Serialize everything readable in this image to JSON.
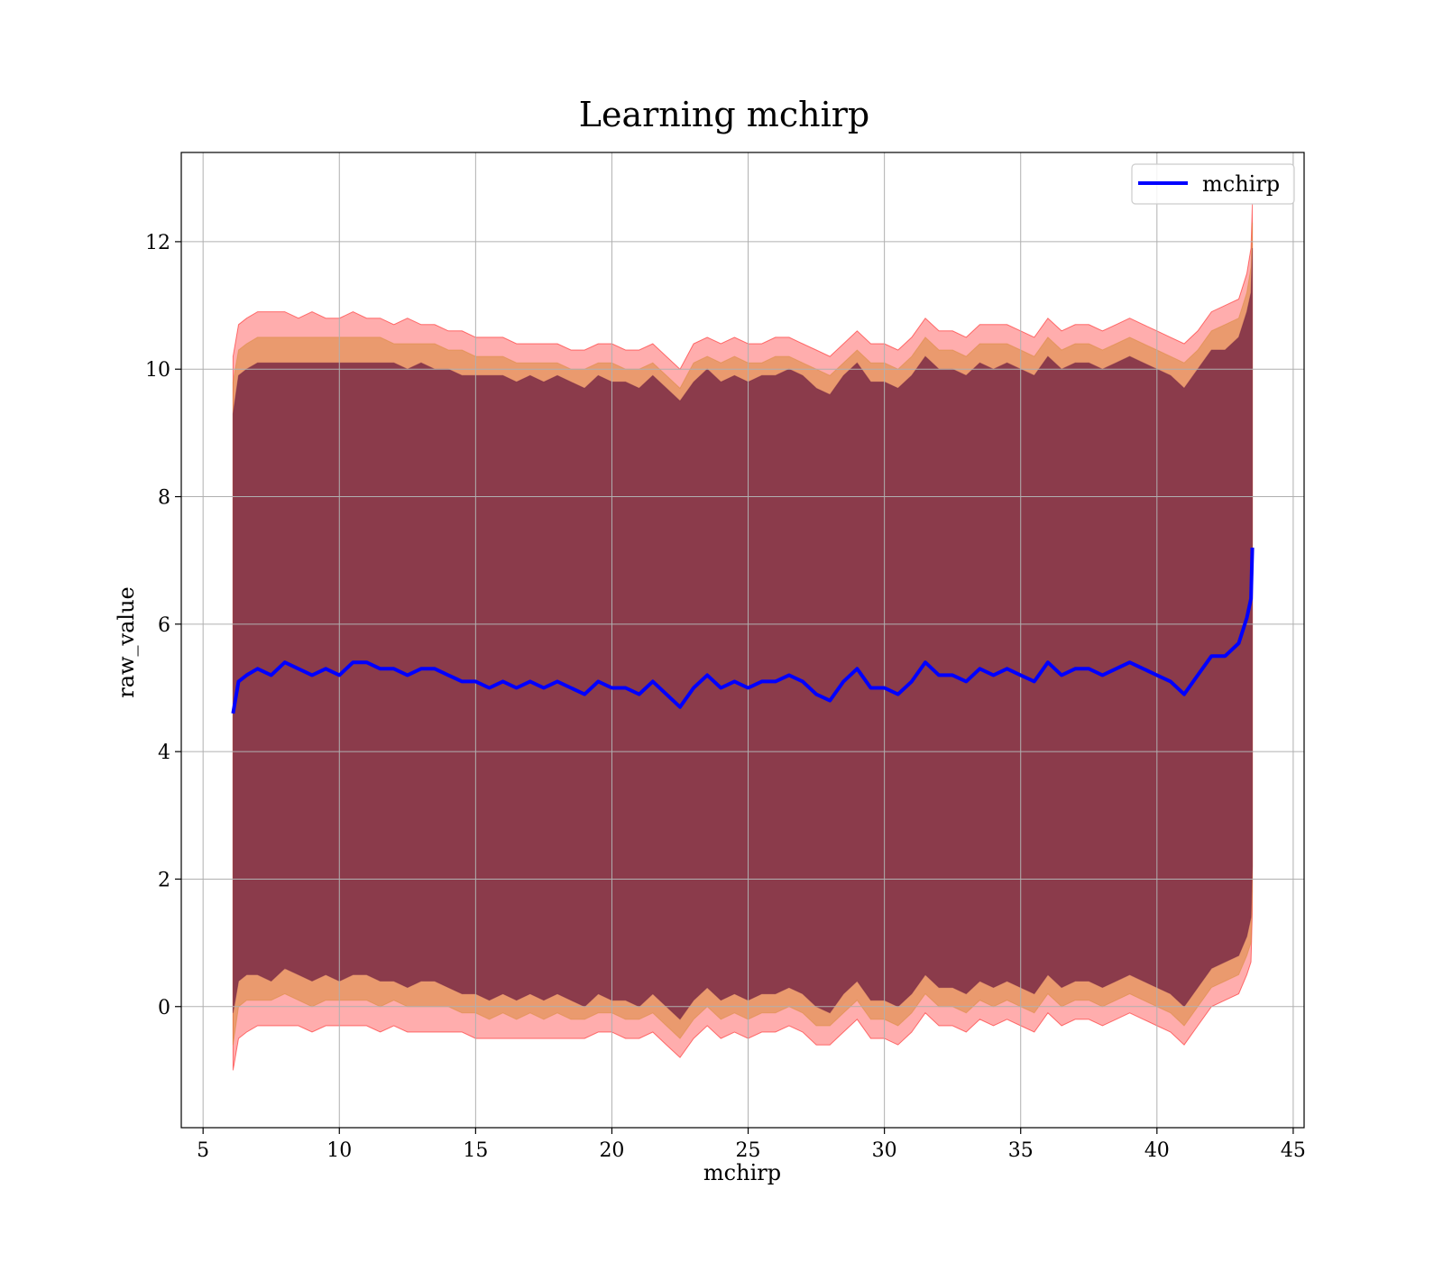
{
  "chart_data": {
    "type": "line",
    "title": "Learning mchirp",
    "xlabel": "mchirp",
    "ylabel": "raw_value",
    "xlim": [
      4.2,
      45.4
    ],
    "ylim": [
      -1.9,
      13.4
    ],
    "xticks": [
      5,
      10,
      15,
      20,
      25,
      30,
      35,
      40,
      45
    ],
    "yticks": [
      0,
      2,
      4,
      6,
      8,
      10,
      12
    ],
    "grid": true,
    "legend_position": "top-right",
    "colors": {
      "line": "#0000ff",
      "outer_band": "#ff0000",
      "middle_band": "#d98a3a",
      "inner_band": "#7a2a45"
    },
    "series": [
      {
        "name": "mchirp",
        "x": [
          6.1,
          6.3,
          6.6,
          7.0,
          7.5,
          8.0,
          8.5,
          9.0,
          9.5,
          10.0,
          10.5,
          11.0,
          11.5,
          12.0,
          12.5,
          13.0,
          13.5,
          14.0,
          14.5,
          15.0,
          15.5,
          16.0,
          16.5,
          17.0,
          17.5,
          18.0,
          18.5,
          19.0,
          19.5,
          20.0,
          20.5,
          21.0,
          21.5,
          22.0,
          22.5,
          23.0,
          23.5,
          24.0,
          24.5,
          25.0,
          25.5,
          26.0,
          26.5,
          27.0,
          27.5,
          28.0,
          28.5,
          29.0,
          29.5,
          30.0,
          30.5,
          31.0,
          31.5,
          32.0,
          32.5,
          33.0,
          33.5,
          34.0,
          34.5,
          35.0,
          35.5,
          36.0,
          36.5,
          37.0,
          37.5,
          38.0,
          38.5,
          39.0,
          39.5,
          40.0,
          40.5,
          41.0,
          41.5,
          42.0,
          42.5,
          43.0,
          43.3,
          43.45,
          43.5
        ],
        "y": [
          4.6,
          5.1,
          5.2,
          5.3,
          5.2,
          5.4,
          5.3,
          5.2,
          5.3,
          5.2,
          5.4,
          5.4,
          5.3,
          5.3,
          5.2,
          5.3,
          5.3,
          5.2,
          5.1,
          5.1,
          5.0,
          5.1,
          5.0,
          5.1,
          5.0,
          5.1,
          5.0,
          4.9,
          5.1,
          5.0,
          5.0,
          4.9,
          5.1,
          4.9,
          4.7,
          5.0,
          5.2,
          5.0,
          5.1,
          5.0,
          5.1,
          5.1,
          5.2,
          5.1,
          4.9,
          4.8,
          5.1,
          5.3,
          5.0,
          5.0,
          4.9,
          5.1,
          5.4,
          5.2,
          5.2,
          5.1,
          5.3,
          5.2,
          5.3,
          5.2,
          5.1,
          5.4,
          5.2,
          5.3,
          5.3,
          5.2,
          5.3,
          5.4,
          5.3,
          5.2,
          5.1,
          4.9,
          5.2,
          5.5,
          5.5,
          5.7,
          6.1,
          6.4,
          7.2
        ]
      }
    ],
    "bands": [
      {
        "upper": [
          10.2,
          10.7,
          10.8,
          10.9,
          10.9,
          10.9,
          10.8,
          10.9,
          10.8,
          10.8,
          10.9,
          10.8,
          10.8,
          10.7,
          10.8,
          10.7,
          10.7,
          10.6,
          10.6,
          10.5,
          10.5,
          10.5,
          10.4,
          10.4,
          10.4,
          10.4,
          10.3,
          10.3,
          10.4,
          10.4,
          10.3,
          10.3,
          10.4,
          10.2,
          10.0,
          10.4,
          10.5,
          10.4,
          10.5,
          10.4,
          10.4,
          10.5,
          10.5,
          10.4,
          10.3,
          10.2,
          10.4,
          10.6,
          10.4,
          10.4,
          10.3,
          10.5,
          10.8,
          10.6,
          10.6,
          10.5,
          10.7,
          10.7,
          10.7,
          10.6,
          10.5,
          10.8,
          10.6,
          10.7,
          10.7,
          10.6,
          10.7,
          10.8,
          10.7,
          10.6,
          10.5,
          10.4,
          10.6,
          10.9,
          11.0,
          11.1,
          11.5,
          11.9,
          12.6
        ],
        "lower": [
          -1.0,
          -0.5,
          -0.4,
          -0.3,
          -0.3,
          -0.3,
          -0.3,
          -0.4,
          -0.3,
          -0.3,
          -0.3,
          -0.3,
          -0.4,
          -0.3,
          -0.4,
          -0.4,
          -0.4,
          -0.4,
          -0.4,
          -0.5,
          -0.5,
          -0.5,
          -0.5,
          -0.5,
          -0.5,
          -0.5,
          -0.5,
          -0.5,
          -0.4,
          -0.4,
          -0.5,
          -0.5,
          -0.4,
          -0.6,
          -0.8,
          -0.5,
          -0.3,
          -0.5,
          -0.4,
          -0.5,
          -0.4,
          -0.4,
          -0.3,
          -0.4,
          -0.6,
          -0.6,
          -0.4,
          -0.2,
          -0.5,
          -0.5,
          -0.6,
          -0.4,
          -0.1,
          -0.3,
          -0.3,
          -0.4,
          -0.2,
          -0.3,
          -0.2,
          -0.3,
          -0.4,
          -0.1,
          -0.3,
          -0.2,
          -0.2,
          -0.3,
          -0.2,
          -0.1,
          -0.2,
          -0.3,
          -0.4,
          -0.6,
          -0.3,
          0.0,
          0.1,
          0.2,
          0.5,
          0.7,
          1.5
        ]
      },
      {
        "upper": [
          9.8,
          10.3,
          10.4,
          10.5,
          10.5,
          10.5,
          10.5,
          10.5,
          10.5,
          10.5,
          10.5,
          10.5,
          10.5,
          10.4,
          10.4,
          10.4,
          10.4,
          10.3,
          10.3,
          10.2,
          10.2,
          10.2,
          10.1,
          10.1,
          10.1,
          10.1,
          10.0,
          10.0,
          10.1,
          10.1,
          10.0,
          10.0,
          10.1,
          9.9,
          9.7,
          10.1,
          10.2,
          10.1,
          10.2,
          10.1,
          10.1,
          10.2,
          10.2,
          10.1,
          10.0,
          9.9,
          10.1,
          10.3,
          10.1,
          10.1,
          10.0,
          10.2,
          10.5,
          10.3,
          10.3,
          10.2,
          10.4,
          10.4,
          10.4,
          10.3,
          10.2,
          10.5,
          10.3,
          10.4,
          10.4,
          10.3,
          10.4,
          10.5,
          10.4,
          10.3,
          10.2,
          10.1,
          10.3,
          10.6,
          10.7,
          10.8,
          11.2,
          11.6,
          12.3
        ],
        "lower": [
          -0.6,
          0.0,
          0.1,
          0.1,
          0.1,
          0.2,
          0.1,
          0.0,
          0.1,
          0.1,
          0.1,
          0.1,
          0.0,
          0.1,
          0.0,
          0.0,
          0.0,
          0.0,
          -0.1,
          -0.1,
          -0.2,
          -0.1,
          -0.2,
          -0.1,
          -0.2,
          -0.1,
          -0.2,
          -0.2,
          -0.1,
          -0.1,
          -0.2,
          -0.2,
          -0.1,
          -0.3,
          -0.5,
          -0.2,
          0.0,
          -0.2,
          -0.1,
          -0.2,
          -0.1,
          -0.1,
          0.0,
          -0.1,
          -0.3,
          -0.3,
          -0.1,
          0.1,
          -0.2,
          -0.2,
          -0.3,
          -0.1,
          0.2,
          0.0,
          0.0,
          -0.1,
          0.1,
          0.0,
          0.1,
          0.0,
          -0.1,
          0.2,
          0.0,
          0.1,
          0.1,
          0.0,
          0.1,
          0.2,
          0.1,
          0.0,
          -0.1,
          -0.3,
          0.0,
          0.3,
          0.4,
          0.5,
          0.8,
          1.0,
          1.8
        ]
      },
      {
        "upper": [
          9.3,
          9.9,
          10.0,
          10.1,
          10.1,
          10.1,
          10.1,
          10.1,
          10.1,
          10.1,
          10.1,
          10.1,
          10.1,
          10.1,
          10.0,
          10.1,
          10.0,
          10.0,
          9.9,
          9.9,
          9.9,
          9.9,
          9.8,
          9.9,
          9.8,
          9.9,
          9.8,
          9.7,
          9.9,
          9.8,
          9.8,
          9.7,
          9.9,
          9.7,
          9.5,
          9.8,
          10.0,
          9.8,
          9.9,
          9.8,
          9.9,
          9.9,
          10.0,
          9.9,
          9.7,
          9.6,
          9.9,
          10.1,
          9.8,
          9.8,
          9.7,
          9.9,
          10.2,
          10.0,
          10.0,
          9.9,
          10.1,
          10.0,
          10.1,
          10.0,
          9.9,
          10.2,
          10.0,
          10.1,
          10.1,
          10.0,
          10.1,
          10.2,
          10.1,
          10.0,
          9.9,
          9.7,
          10.0,
          10.3,
          10.3,
          10.5,
          10.9,
          11.2,
          11.9
        ],
        "lower": [
          -0.1,
          0.4,
          0.5,
          0.5,
          0.4,
          0.6,
          0.5,
          0.4,
          0.5,
          0.4,
          0.5,
          0.5,
          0.4,
          0.4,
          0.3,
          0.4,
          0.4,
          0.3,
          0.2,
          0.2,
          0.1,
          0.2,
          0.1,
          0.2,
          0.1,
          0.2,
          0.1,
          0.0,
          0.2,
          0.1,
          0.1,
          0.0,
          0.2,
          0.0,
          -0.2,
          0.1,
          0.3,
          0.1,
          0.2,
          0.1,
          0.2,
          0.2,
          0.3,
          0.2,
          0.0,
          -0.1,
          0.2,
          0.4,
          0.1,
          0.1,
          0.0,
          0.2,
          0.5,
          0.3,
          0.3,
          0.2,
          0.4,
          0.3,
          0.4,
          0.3,
          0.2,
          0.5,
          0.3,
          0.4,
          0.4,
          0.3,
          0.4,
          0.5,
          0.4,
          0.3,
          0.2,
          0.0,
          0.3,
          0.6,
          0.7,
          0.8,
          1.1,
          1.4,
          2.2
        ]
      }
    ]
  }
}
